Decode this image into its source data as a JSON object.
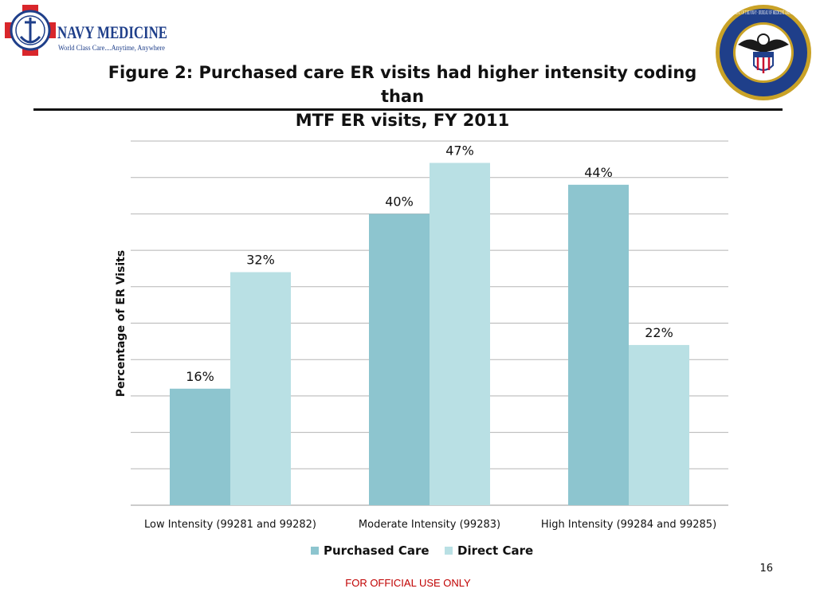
{
  "header": {
    "brand_text": "NAVY MEDICINE",
    "tagline": "World Class Care....Anytime, Anywhere",
    "seal_text": "DEPARTMENT OF THE NAVY · BUREAU OF MEDICINE AND SURGERY",
    "title_line1": "Figure 2: Purchased care ER visits had higher intensity coding than",
    "title_line2": "MTF ER visits, FY 2011"
  },
  "chart_data": {
    "type": "bar",
    "title": "",
    "xlabel": "",
    "ylabel": "Percentage of ER Visits",
    "categories": [
      "Low Intensity (99281 and 99282)",
      "Moderate Intensity (99283)",
      "High Intensity (99284 and 99285)"
    ],
    "series": [
      {
        "name": "Purchased Care",
        "values": [
          16,
          40,
          44
        ],
        "labels": [
          "16%",
          "40%",
          "44%"
        ],
        "color": "#8dc5cf"
      },
      {
        "name": "Direct Care",
        "values": [
          32,
          47,
          22
        ],
        "labels": [
          "32%",
          "47%",
          "22%"
        ],
        "color": "#b9e0e4"
      }
    ],
    "ylim": [
      0,
      50
    ],
    "grid": true,
    "legend": "bottom"
  },
  "footer": {
    "page_number": "16",
    "classification": "FOR OFFICIAL USE ONLY"
  }
}
